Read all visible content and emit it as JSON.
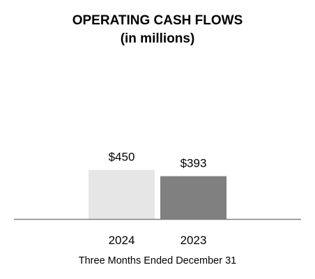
{
  "chart_data": {
    "type": "bar",
    "title": "OPERATING CASH FLOWS",
    "subtitle": "(in millions)",
    "categories": [
      "2024",
      "2023"
    ],
    "values": [
      450,
      393
    ],
    "value_labels": [
      "$450",
      "$393"
    ],
    "xlabel": "Three Months Ended December 31",
    "ylabel": "",
    "ylim": [
      0,
      1600
    ],
    "grid": false,
    "legend": "none",
    "colors": [
      "#e6e6e6",
      "#808080"
    ],
    "axis_color": "#808080"
  }
}
